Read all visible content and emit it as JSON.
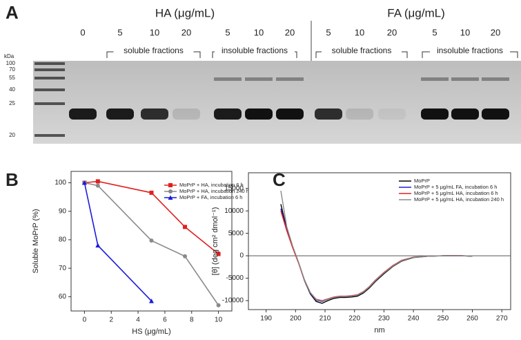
{
  "gel": {
    "label": "A",
    "groups": [
      "HA (μg/mL)",
      "FA (μg/mL)"
    ],
    "lanes": [
      "0",
      "5",
      "10",
      "20",
      "5",
      "10",
      "20",
      "5",
      "10",
      "20",
      "5",
      "10",
      "20"
    ],
    "fractions": [
      "soluble fractions",
      "insoluble fractions",
      "soluble fractions",
      "insoluble fractions"
    ],
    "ladder_unit": "kDa",
    "ladder": [
      "100",
      "70",
      "55",
      "40",
      "25",
      "20"
    ]
  },
  "chart_data": [
    {
      "type": "line",
      "label": "B",
      "xlabel": "HS (μg/mL)",
      "ylabel": "Soluble MoPrP (%)",
      "xlim": [
        -1,
        11
      ],
      "xticks": [
        0,
        2,
        4,
        6,
        8,
        10
      ],
      "ylim": [
        55,
        104
      ],
      "yticks": [
        60,
        70,
        80,
        90,
        100
      ],
      "legend": "upper right",
      "series": [
        {
          "name": "MoPrP + HA, incubation 6 h",
          "color": "#e02020",
          "marker": "square",
          "x": [
            0,
            1,
            5,
            7.5,
            10
          ],
          "values": [
            100,
            100.5,
            96.5,
            84.5,
            75
          ]
        },
        {
          "name": "MoPrP + HA, incubation 240 h",
          "color": "#8a8a8a",
          "marker": "circle",
          "x": [
            0,
            1,
            5,
            7.5,
            10
          ],
          "values": [
            100,
            99,
            79.7,
            74.2,
            57
          ]
        },
        {
          "name": "MoPrP + FA, incubation 6 h",
          "color": "#1a1adc",
          "marker": "triangle",
          "x": [
            0,
            1,
            5
          ],
          "values": [
            100,
            78,
            58.5
          ]
        }
      ]
    },
    {
      "type": "line",
      "label": "C",
      "xlabel": "nm",
      "ylabel": "[θ] (deg cm² dmol⁻¹)",
      "xlim": [
        184,
        273
      ],
      "xticks": [
        190,
        200,
        210,
        220,
        230,
        240,
        250,
        260,
        270
      ],
      "ylim": [
        -12000,
        18500
      ],
      "yticks": [
        -10000,
        -5000,
        0,
        5000,
        10000,
        15000
      ],
      "zero_line": true,
      "legend": "upper right",
      "x": [
        195,
        197,
        199,
        201,
        203,
        205,
        207,
        209,
        211,
        213,
        215,
        217,
        219,
        221,
        223,
        225,
        227,
        230,
        233,
        236,
        240,
        245,
        250,
        255,
        260
      ],
      "series": [
        {
          "name": "MoPrP",
          "color": "#000000",
          "values": [
            11500,
            6000,
            2000,
            -1500,
            -5500,
            -8500,
            -10200,
            -10600,
            -10000,
            -9500,
            -9300,
            -9300,
            -9200,
            -9000,
            -8300,
            -7200,
            -5800,
            -4000,
            -2400,
            -1200,
            -400,
            -100,
            0,
            50,
            -100
          ]
        },
        {
          "name": "MoPrP + 5 μg/mL FA, incubation 6 h",
          "color": "#2020d0",
          "values": [
            10500,
            5800,
            1900,
            -1500,
            -5400,
            -8300,
            -9900,
            -10200,
            -9700,
            -9300,
            -9100,
            -9100,
            -9000,
            -8800,
            -8100,
            -7000,
            -5600,
            -3800,
            -2200,
            -1100,
            -350,
            -80,
            0,
            30,
            -80
          ]
        },
        {
          "name": "MoPrP + 5 μg/mL HA, incubation 6 h",
          "color": "#e02020",
          "values": [
            10000,
            5600,
            1800,
            -1600,
            -5400,
            -8200,
            -9700,
            -10000,
            -9600,
            -9200,
            -9000,
            -9000,
            -8900,
            -8700,
            -8000,
            -6900,
            -5500,
            -3700,
            -2200,
            -1000,
            -300,
            -60,
            0,
            40,
            -60
          ]
        },
        {
          "name": "MoPrP + 5 μg/mL HA, incubation 240 h",
          "color": "#8a8a8a",
          "values": [
            14500,
            6500,
            2200,
            -1400,
            -5300,
            -8200,
            -9800,
            -10100,
            -9700,
            -9300,
            -9100,
            -9100,
            -9000,
            -8800,
            -8100,
            -7000,
            -5600,
            -3800,
            -2300,
            -1100,
            -350,
            -80,
            0,
            40,
            -60
          ]
        }
      ]
    }
  ]
}
